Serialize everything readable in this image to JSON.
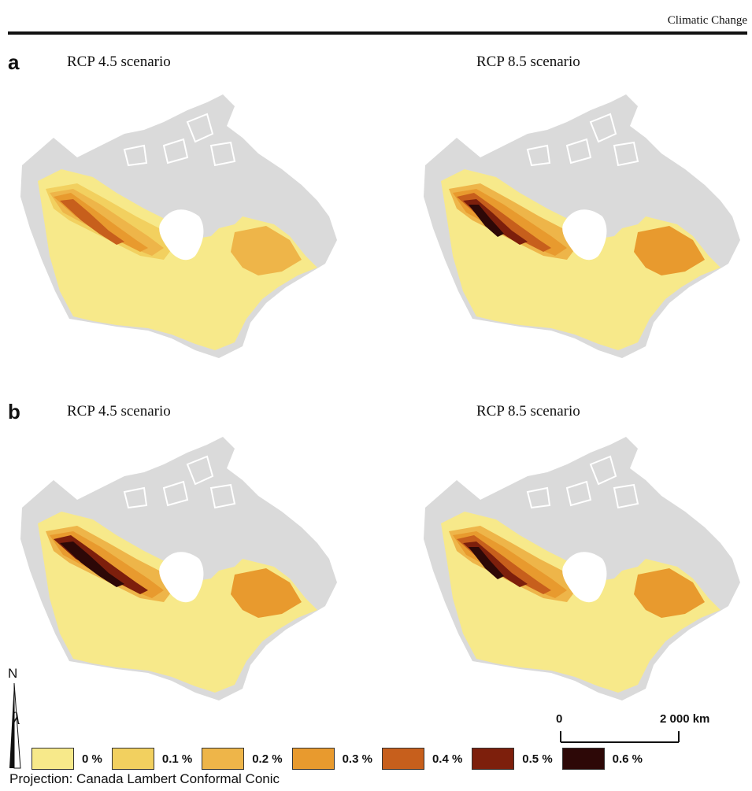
{
  "header": {
    "journal": "Climatic Change"
  },
  "colors": {
    "land_grey": "#dadada",
    "ocean": "#ffffff",
    "classes": [
      "#f7e98a",
      "#f2d05f",
      "#eeb549",
      "#e89a2e",
      "#c75f1c",
      "#7d1f0c",
      "#2d0807"
    ]
  },
  "panels": [
    {
      "letter": "a",
      "maps": [
        {
          "scenario": "RCP 4.5 scenario",
          "intensity": [
            0,
            1,
            2,
            3,
            4
          ]
        },
        {
          "scenario": "RCP 8.5 scenario",
          "intensity": [
            0,
            2,
            3,
            4,
            5,
            6
          ]
        }
      ]
    },
    {
      "letter": "b",
      "maps": [
        {
          "scenario": "RCP 4.5 scenario",
          "intensity": [
            0,
            2,
            3,
            5,
            6
          ]
        },
        {
          "scenario": "RCP 8.5 scenario",
          "intensity": [
            0,
            2,
            3,
            4,
            5,
            6
          ]
        }
      ]
    }
  ],
  "legend": {
    "items": [
      {
        "label": "0 %",
        "class": 0
      },
      {
        "label": "0.1 %",
        "class": 1
      },
      {
        "label": "0.2 %",
        "class": 2
      },
      {
        "label": "0.3 %",
        "class": 3
      },
      {
        "label": "0.4 %",
        "class": 4
      },
      {
        "label": "0.5 %",
        "class": 5
      },
      {
        "label": "0.6 %",
        "class": 6
      }
    ]
  },
  "north_arrow": {
    "label": "N"
  },
  "scale_bar": {
    "start": "0",
    "end": "2 000 km"
  },
  "projection": "Projection: Canada Lambert Conformal Conic"
}
